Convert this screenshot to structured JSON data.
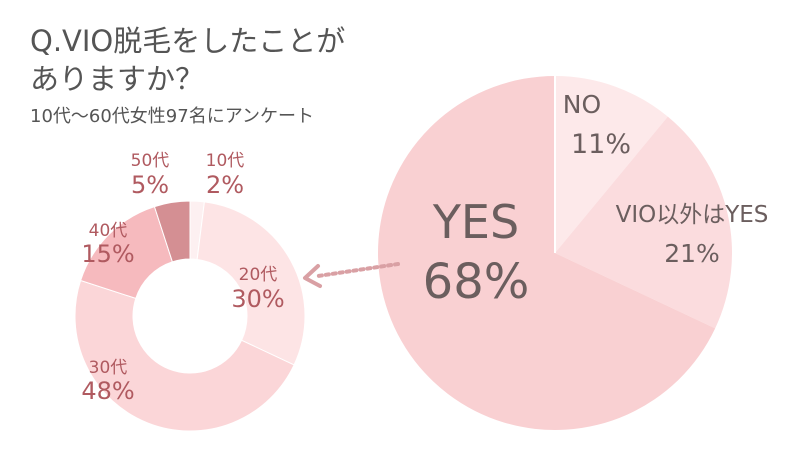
{
  "question": {
    "line1": "Q.VIO脱毛をしたことが",
    "line2": "ありますか？",
    "subtitle": "10代〜60代女性97名にアンケート"
  },
  "chart_data": [
    {
      "type": "pie",
      "slices": [
        {
          "label": "NO",
          "value": 11,
          "display": "11%",
          "color": "#fde9ea"
        },
        {
          "label": "VIO以外はYES",
          "value": 21,
          "display": "21%",
          "color": "#fbdcde"
        },
        {
          "label": "YES",
          "value": 68,
          "display": "68%",
          "color": "#f9d0d2"
        }
      ]
    },
    {
      "type": "pie",
      "donut": true,
      "slices": [
        {
          "label": "10代",
          "value": 2,
          "display": "2%",
          "color": "#fdf0f1"
        },
        {
          "label": "20代",
          "value": 30,
          "display": "30%",
          "color": "#fde4e5"
        },
        {
          "label": "30代",
          "value": 48,
          "display": "48%",
          "color": "#fbd6d8"
        },
        {
          "label": "40代",
          "value": 15,
          "display": "15%",
          "color": "#f6babe"
        },
        {
          "label": "50代",
          "value": 5,
          "display": "5%",
          "color": "#d48f93"
        }
      ]
    }
  ],
  "colors": {
    "dark_label": "#6b5e5e",
    "accent_label": "#b05a60",
    "arrow": "#d9a0a4"
  }
}
